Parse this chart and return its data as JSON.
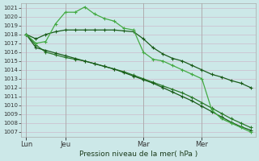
{
  "bg_color": "#cce8e8",
  "grid_color": "#ccbbcc",
  "line_color_dark": "#1a5c1a",
  "line_color_mid": "#2a7a2a",
  "line_color_light": "#44aa44",
  "ylabel": "Pression niveau de la mer( hPa )",
  "ylim": [
    1006.5,
    1021.5
  ],
  "yticks": [
    1007,
    1008,
    1009,
    1010,
    1011,
    1012,
    1013,
    1014,
    1015,
    1016,
    1017,
    1018,
    1019,
    1020,
    1021
  ],
  "xtick_labels": [
    "Lun",
    "Jeu",
    "Mar",
    "Mer"
  ],
  "xtick_positions": [
    0,
    4,
    12,
    18
  ],
  "total_points": 24,
  "series1_x": [
    0,
    1,
    2,
    3,
    4,
    5,
    6,
    7,
    8,
    9,
    10,
    11,
    12,
    13,
    14,
    15,
    16,
    17,
    18,
    19,
    20,
    21,
    22,
    23
  ],
  "series1": [
    1018.0,
    1017.0,
    1017.2,
    1019.2,
    1020.5,
    1020.5,
    1021.1,
    1020.3,
    1019.8,
    1019.5,
    1018.7,
    1018.5,
    1016.0,
    1015.2,
    1015.0,
    1014.5,
    1014.0,
    1013.5,
    1013.0,
    1009.5,
    1008.5,
    1008.0,
    1007.5,
    1007.0
  ],
  "series2_x": [
    0,
    1,
    2,
    3,
    4,
    5,
    6,
    7,
    8,
    9,
    10,
    11,
    12,
    13,
    14,
    15,
    16,
    17,
    18,
    19,
    20,
    21,
    22,
    23
  ],
  "series2": [
    1018.0,
    1017.5,
    1018.0,
    1018.3,
    1018.5,
    1018.5,
    1018.5,
    1018.5,
    1018.5,
    1018.5,
    1018.4,
    1018.3,
    1017.5,
    1016.5,
    1015.8,
    1015.3,
    1015.0,
    1014.5,
    1014.0,
    1013.5,
    1013.2,
    1012.8,
    1012.5,
    1012.0
  ],
  "series3_x": [
    0,
    1,
    2,
    3,
    4,
    5,
    6,
    7,
    8,
    9,
    10,
    11,
    12,
    13,
    14,
    15,
    16,
    17,
    18,
    19,
    20,
    21,
    22,
    23
  ],
  "series3": [
    1018.0,
    1016.8,
    1016.0,
    1015.7,
    1015.4,
    1015.2,
    1015.0,
    1014.7,
    1014.4,
    1014.1,
    1013.8,
    1013.4,
    1013.0,
    1012.6,
    1012.2,
    1011.8,
    1011.4,
    1010.9,
    1010.3,
    1009.7,
    1009.1,
    1008.5,
    1008.0,
    1007.5
  ],
  "series4_x": [
    0,
    1,
    2,
    3,
    4,
    5,
    6,
    7,
    8,
    9,
    10,
    11,
    12,
    13,
    14,
    15,
    16,
    17,
    18,
    19,
    20,
    21,
    22,
    23
  ],
  "series4": [
    1018.0,
    1016.5,
    1016.2,
    1015.9,
    1015.6,
    1015.3,
    1015.0,
    1014.7,
    1014.4,
    1014.1,
    1013.7,
    1013.3,
    1012.9,
    1012.5,
    1012.0,
    1011.5,
    1011.0,
    1010.5,
    1009.9,
    1009.3,
    1008.7,
    1008.1,
    1007.6,
    1007.2
  ]
}
